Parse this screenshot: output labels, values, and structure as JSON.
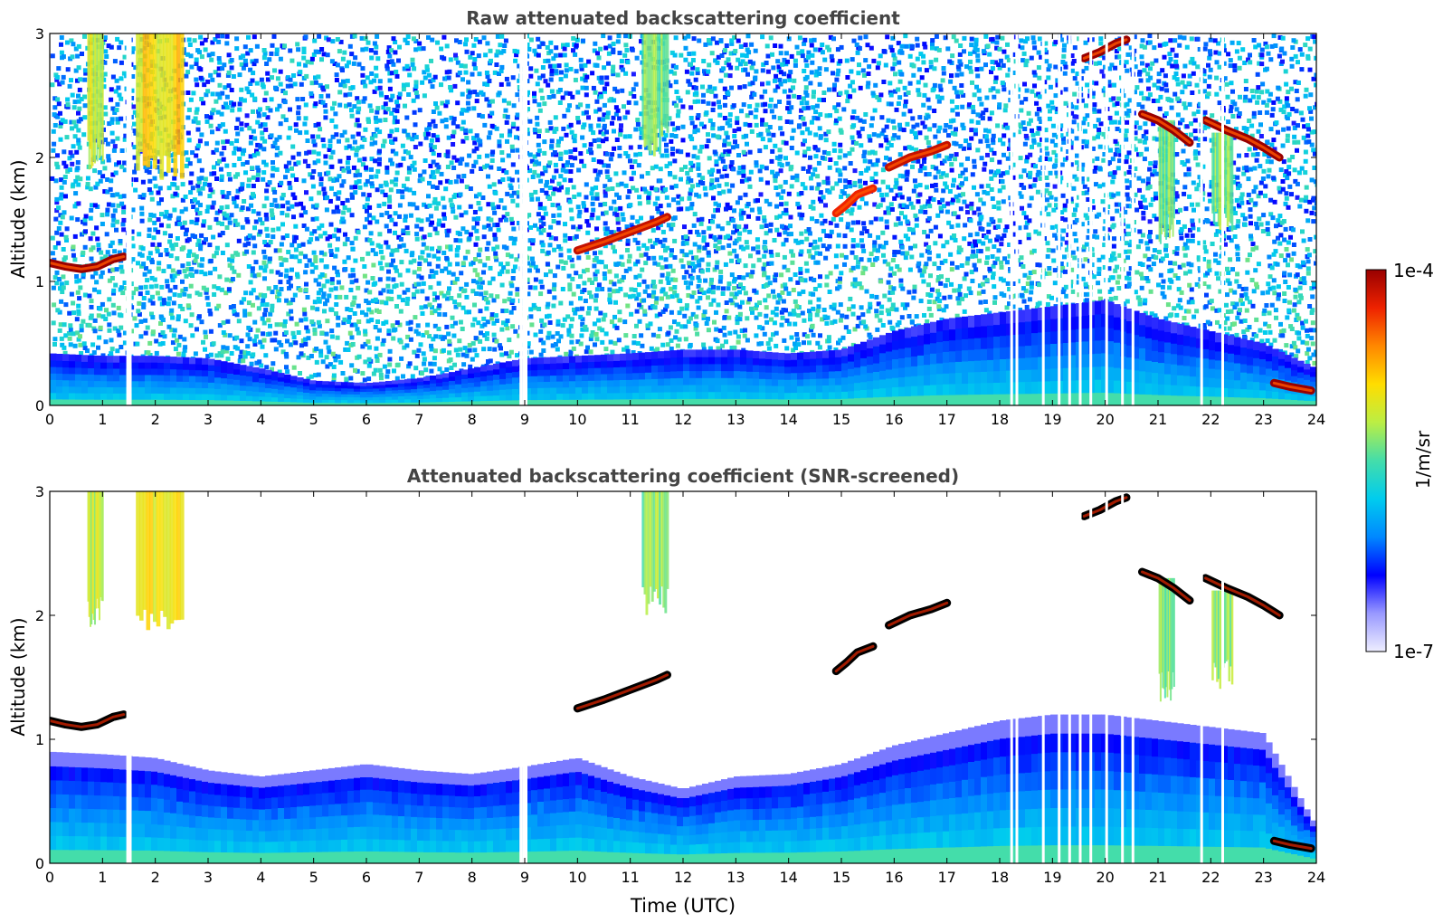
{
  "chart_data": [
    {
      "type": "heatmap",
      "title": "Raw attenuated backscattering coefficient",
      "xlabel": "",
      "ylabel": "Altitude (km)",
      "xlim": [
        0,
        24
      ],
      "ylim": [
        0,
        3
      ],
      "xticks": [
        "0",
        "1",
        "2",
        "3",
        "4",
        "5",
        "6",
        "7",
        "8",
        "9",
        "10",
        "11",
        "12",
        "13",
        "14",
        "15",
        "16",
        "17",
        "18",
        "19",
        "20",
        "21",
        "22",
        "23",
        "24"
      ],
      "yticks": [
        "0",
        "1",
        "2",
        "3"
      ],
      "cloud_layers": [
        {
          "x": [
            0.0,
            0.3,
            0.6,
            0.9,
            1.2,
            1.4
          ],
          "y": [
            1.15,
            1.12,
            1.1,
            1.12,
            1.18,
            1.2
          ],
          "v": 1.0
        },
        {
          "x": [
            10.0,
            10.5,
            11.0,
            11.5,
            11.7
          ],
          "y": [
            1.25,
            1.32,
            1.4,
            1.48,
            1.52
          ],
          "v": 0.95
        },
        {
          "x": [
            14.9,
            15.1,
            15.3,
            15.6
          ],
          "y": [
            1.55,
            1.62,
            1.7,
            1.75
          ],
          "v": 0.9
        },
        {
          "x": [
            15.9,
            16.3,
            16.7,
            17.0
          ],
          "y": [
            1.92,
            2.0,
            2.05,
            2.1
          ],
          "v": 0.95
        },
        {
          "x": [
            19.6,
            19.9,
            20.2,
            20.4
          ],
          "y": [
            2.8,
            2.85,
            2.92,
            2.95
          ],
          "v": 1.0
        },
        {
          "x": [
            20.7,
            21.0,
            21.3,
            21.6
          ],
          "y": [
            2.35,
            2.3,
            2.22,
            2.12
          ],
          "v": 1.0
        },
        {
          "x": [
            21.9,
            22.3,
            22.7,
            23.0,
            23.3
          ],
          "y": [
            2.3,
            2.22,
            2.15,
            2.08,
            2.0
          ],
          "v": 1.0
        },
        {
          "x": [
            23.2,
            23.5,
            23.9
          ],
          "y": [
            0.18,
            0.15,
            0.12
          ],
          "v": 1.0
        }
      ],
      "plumes": [
        {
          "x0": 0.7,
          "x1": 1.0,
          "y0": 1.9,
          "y1": 3.0,
          "v": 0.62
        },
        {
          "x0": 1.6,
          "x1": 2.5,
          "y0": 1.8,
          "y1": 3.0,
          "v": 0.7
        },
        {
          "x0": 11.2,
          "x1": 11.7,
          "y0": 2.0,
          "y1": 3.0,
          "v": 0.55
        },
        {
          "x0": 21.0,
          "x1": 21.3,
          "y0": 1.3,
          "y1": 2.3,
          "v": 0.55
        },
        {
          "x0": 22.0,
          "x1": 22.4,
          "y0": 1.4,
          "y1": 2.2,
          "v": 0.55
        }
      ],
      "boundary_layer": {
        "x": [
          0,
          1,
          2,
          3,
          4,
          5,
          6,
          7,
          8,
          9,
          10,
          11,
          12,
          13,
          14,
          15,
          16,
          17,
          18,
          19,
          20,
          21,
          22,
          23,
          24
        ],
        "top_km": [
          0.42,
          0.4,
          0.4,
          0.38,
          0.3,
          0.2,
          0.18,
          0.22,
          0.3,
          0.38,
          0.4,
          0.42,
          0.45,
          0.45,
          0.42,
          0.45,
          0.6,
          0.7,
          0.75,
          0.8,
          0.85,
          0.7,
          0.6,
          0.5,
          0.3
        ]
      },
      "gaps_utc": [
        1.45,
        1.5,
        8.9,
        8.95,
        9.0,
        18.2,
        18.3,
        18.8,
        19.1,
        19.3,
        19.5,
        19.7,
        20.0,
        20.3,
        20.5,
        21.8,
        22.2
      ]
    },
    {
      "type": "heatmap",
      "title": "Attenuated backscattering coefficient (SNR-screened)",
      "xlabel": "Time (UTC)",
      "ylabel": "Altitude (km)",
      "xlim": [
        0,
        24
      ],
      "ylim": [
        0,
        3
      ],
      "xticks": [
        "0",
        "1",
        "2",
        "3",
        "4",
        "5",
        "6",
        "7",
        "8",
        "9",
        "10",
        "11",
        "12",
        "13",
        "14",
        "15",
        "16",
        "17",
        "18",
        "19",
        "20",
        "21",
        "22",
        "23",
        "24"
      ],
      "yticks": [
        "0",
        "1",
        "2",
        "3"
      ],
      "screened": true,
      "boundary_layer": {
        "x": [
          0,
          1,
          2,
          3,
          4,
          5,
          6,
          7,
          8,
          9,
          10,
          11,
          12,
          13,
          14,
          15,
          16,
          17,
          18,
          19,
          20,
          21,
          22,
          23,
          24
        ],
        "top_km": [
          0.9,
          0.88,
          0.85,
          0.75,
          0.7,
          0.75,
          0.8,
          0.75,
          0.72,
          0.78,
          0.85,
          0.7,
          0.6,
          0.7,
          0.72,
          0.8,
          0.95,
          1.05,
          1.15,
          1.2,
          1.2,
          1.15,
          1.1,
          1.05,
          0.3
        ]
      }
    }
  ],
  "colorbar": {
    "label": "1/m/sr",
    "max_label": "1e-4",
    "min_label": "1e-7",
    "colors": [
      "#eeeeff",
      "#9999ff",
      "#0000ff",
      "#0088ff",
      "#00ccee",
      "#44ddaa",
      "#bbee44",
      "#ffdd00",
      "#ff8800",
      "#ee2200",
      "#990000"
    ]
  }
}
